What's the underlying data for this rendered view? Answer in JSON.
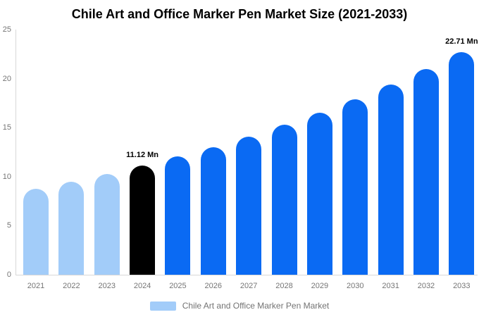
{
  "chart": {
    "title": "Chile Art and Office Marker Pen Market Size (2021-2033)"
  },
  "legend": {
    "label": "Chile Art and Office Marker Pen Market",
    "swatch_color": "#a2ccf9"
  },
  "colors": {
    "historical_bar": "#a2ccf9",
    "base_year_bar": "#000000",
    "forecast_bar": "#0a6af3",
    "axis_line": "#d8d8d8",
    "tick_text": "#757575",
    "legend_text": "#737373",
    "title_text": "#000000",
    "background": "#ffffff"
  },
  "chart_data": {
    "type": "bar",
    "title": "Chile Art and Office Marker Pen Market Size (2021-2033)",
    "xlabel": "",
    "ylabel": "",
    "unit": "Mn",
    "categories": [
      "2021",
      "2022",
      "2023",
      "2024",
      "2025",
      "2026",
      "2027",
      "2028",
      "2029",
      "2030",
      "2031",
      "2032",
      "2033"
    ],
    "values": [
      8.76,
      9.49,
      10.27,
      11.12,
      12.04,
      13.03,
      14.11,
      15.27,
      16.54,
      17.9,
      19.38,
      20.98,
      22.71
    ],
    "bar_colors": [
      "#a2ccf9",
      "#a2ccf9",
      "#a2ccf9",
      "#000000",
      "#0a6af3",
      "#0a6af3",
      "#0a6af3",
      "#0a6af3",
      "#0a6af3",
      "#0a6af3",
      "#0a6af3",
      "#0a6af3",
      "#0a6af3"
    ],
    "data_labels": [
      {
        "index": 3,
        "text": "11.12 Mn"
      },
      {
        "index": 12,
        "text": "22.71 Mn"
      }
    ],
    "yticks": [
      0,
      5,
      10,
      15,
      20,
      25
    ],
    "ylim": [
      0,
      25
    ],
    "grid": false,
    "legend_position": "bottom"
  }
}
